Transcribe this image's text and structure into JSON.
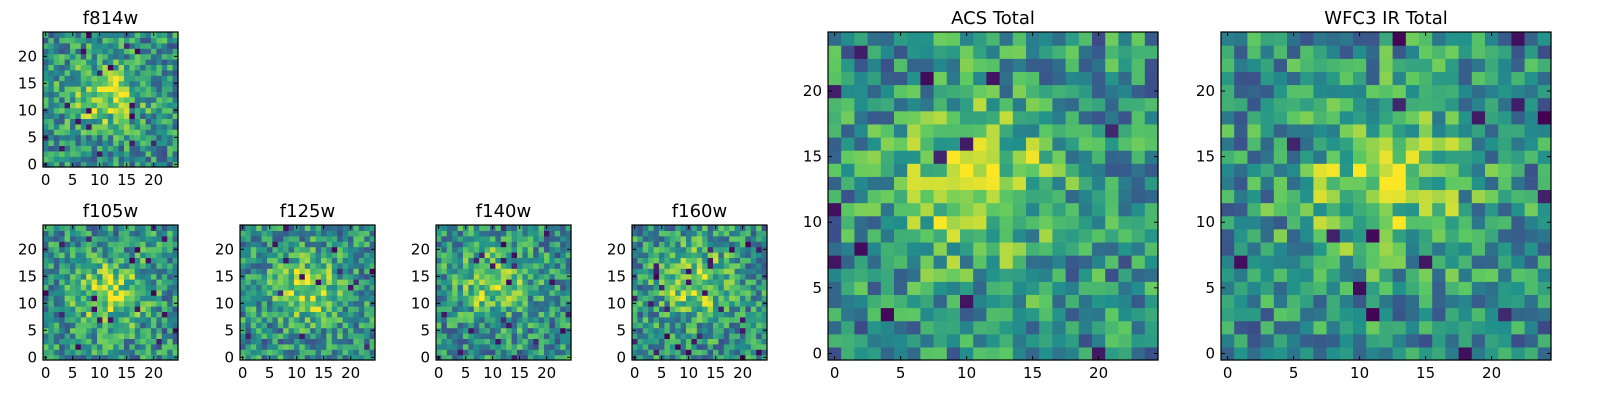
{
  "chart_data": [
    {
      "type": "heatmap",
      "title": "f814w",
      "grid": [
        25,
        25
      ],
      "xlim": [
        0,
        24
      ],
      "ylim": [
        0,
        24
      ],
      "xticks": [
        0,
        5,
        10,
        15,
        20
      ],
      "yticks": [
        0,
        5,
        10,
        15,
        20
      ],
      "colormap": "viridis",
      "center": [
        11,
        13
      ],
      "seed": 1
    },
    {
      "type": "heatmap",
      "title": "f105w",
      "grid": [
        25,
        25
      ],
      "xlim": [
        0,
        24
      ],
      "ylim": [
        0,
        24
      ],
      "xticks": [
        0,
        5,
        10,
        15,
        20
      ],
      "yticks": [
        0,
        5,
        10,
        15,
        20
      ],
      "colormap": "viridis",
      "center": [
        12,
        12
      ],
      "seed": 2
    },
    {
      "type": "heatmap",
      "title": "f125w",
      "grid": [
        25,
        25
      ],
      "xlim": [
        0,
        24
      ],
      "ylim": [
        0,
        24
      ],
      "xticks": [
        0,
        5,
        10,
        15,
        20
      ],
      "yticks": [
        0,
        5,
        10,
        15,
        20
      ],
      "colormap": "viridis",
      "center": [
        12,
        13
      ],
      "seed": 3
    },
    {
      "type": "heatmap",
      "title": "f140w",
      "grid": [
        25,
        25
      ],
      "xlim": [
        0,
        24
      ],
      "ylim": [
        0,
        24
      ],
      "xticks": [
        0,
        5,
        10,
        15,
        20
      ],
      "yticks": [
        0,
        5,
        10,
        15,
        20
      ],
      "colormap": "viridis",
      "center": [
        10,
        14
      ],
      "seed": 4
    },
    {
      "type": "heatmap",
      "title": "f160w",
      "grid": [
        25,
        25
      ],
      "xlim": [
        0,
        24
      ],
      "ylim": [
        0,
        24
      ],
      "xticks": [
        0,
        5,
        10,
        15,
        20
      ],
      "yticks": [
        0,
        5,
        10,
        15,
        20
      ],
      "colormap": "viridis",
      "center": [
        11,
        14
      ],
      "seed": 5
    },
    {
      "type": "heatmap",
      "title": "ACS Total",
      "grid": [
        25,
        25
      ],
      "xlim": [
        0,
        24
      ],
      "ylim": [
        0,
        24
      ],
      "xticks": [
        0,
        5,
        10,
        15,
        20
      ],
      "yticks": [
        0,
        5,
        10,
        15,
        20
      ],
      "colormap": "viridis",
      "center": [
        11,
        13
      ],
      "seed": 6
    },
    {
      "type": "heatmap",
      "title": "WFC3 IR Total",
      "grid": [
        25,
        25
      ],
      "xlim": [
        0,
        24
      ],
      "ylim": [
        0,
        24
      ],
      "xticks": [
        0,
        5,
        10,
        15,
        20
      ],
      "yticks": [
        0,
        5,
        10,
        15,
        20
      ],
      "colormap": "viridis",
      "center": [
        12,
        13
      ],
      "seed": 7
    }
  ]
}
